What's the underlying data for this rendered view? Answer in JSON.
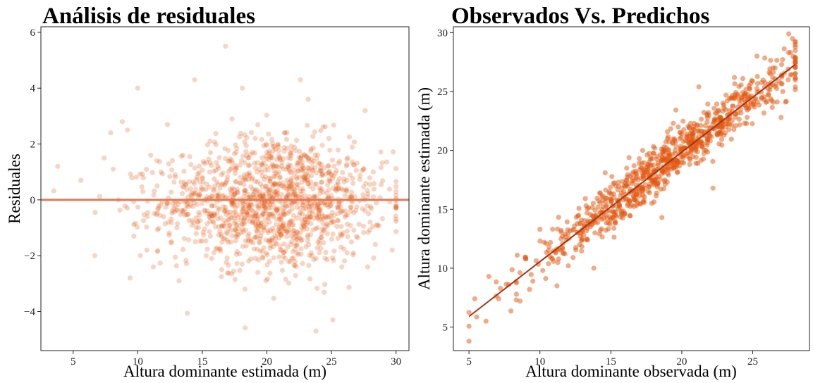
{
  "colors": {
    "points": "#e2570f",
    "ref_line": "#e07a55",
    "fit_line": "#a83310"
  },
  "chart_data": [
    {
      "type": "scatter",
      "title": "Análisis de residuales",
      "xlabel": "Altura dominante estimada (m)",
      "ylabel": "Residuales",
      "xlim": [
        2.5,
        31
      ],
      "ylim": [
        -5.4,
        6.2
      ],
      "xticks": [
        5,
        10,
        15,
        20,
        25,
        30
      ],
      "yticks": [
        -4,
        -2,
        0,
        2,
        4,
        6
      ],
      "yticklabels": [
        "−4",
        "−2",
        "0",
        "2",
        "4",
        "6"
      ],
      "grid": false,
      "reference_line": {
        "y": 0
      },
      "point_count": 1400,
      "point_opacity": 0.25,
      "series": [
        {
          "points": [
            [
              3.8,
              1.2
            ],
            [
              5.6,
              0.7
            ],
            [
              6.7,
              -0.45
            ],
            [
              7.4,
              1.5
            ],
            [
              7.9,
              2.4
            ],
            [
              8.1,
              1.1
            ],
            [
              8.5,
              0.0
            ],
            [
              8.8,
              2.8
            ],
            [
              9.2,
              2.5
            ],
            [
              9.4,
              -2.8
            ],
            [
              9.7,
              -1.3
            ],
            [
              10.0,
              4.0
            ],
            [
              10.2,
              -2.0
            ],
            [
              10.4,
              0.3
            ],
            [
              10.7,
              -1.8
            ],
            [
              11.0,
              1.6
            ],
            [
              11.2,
              -2.4
            ],
            [
              11.5,
              0.5
            ],
            [
              11.8,
              1.0
            ],
            [
              12.0,
              -0.6
            ],
            [
              12.3,
              2.7
            ],
            [
              12.6,
              -1.5
            ],
            [
              12.9,
              0.9
            ],
            [
              13.2,
              -2.9
            ],
            [
              13.5,
              1.6
            ],
            [
              13.8,
              -0.2
            ],
            [
              14.1,
              0.4
            ],
            [
              14.4,
              4.3
            ],
            [
              14.7,
              -1.0
            ],
            [
              15.0,
              0.8
            ],
            [
              15.3,
              -2.0
            ],
            [
              15.6,
              2.1
            ],
            [
              15.9,
              -0.5
            ],
            [
              16.2,
              1.2
            ],
            [
              16.5,
              -2.5
            ],
            [
              16.8,
              5.5
            ],
            [
              17.0,
              -0.7
            ],
            [
              17.3,
              2.9
            ],
            [
              17.6,
              -1.3
            ],
            [
              17.9,
              0.6
            ],
            [
              18.1,
              4.0
            ],
            [
              18.3,
              -3.2
            ],
            [
              18.6,
              1.5
            ],
            [
              18.9,
              -0.4
            ],
            [
              19.1,
              2.2
            ],
            [
              19.4,
              -1.5
            ],
            [
              19.7,
              0.2
            ],
            [
              20.0,
              1.7
            ],
            [
              20.2,
              -2.2
            ],
            [
              20.5,
              -0.6
            ],
            [
              20.8,
              0.9
            ],
            [
              21.1,
              -1.0
            ],
            [
              21.4,
              2.4
            ],
            [
              21.7,
              -0.9
            ],
            [
              22.0,
              0.3
            ],
            [
              22.3,
              -1.6
            ],
            [
              22.6,
              4.3
            ],
            [
              22.9,
              0.8
            ],
            [
              23.2,
              3.6
            ],
            [
              23.5,
              -0.5
            ],
            [
              23.8,
              -4.7
            ],
            [
              24.1,
              1.3
            ],
            [
              24.4,
              -1.1
            ],
            [
              24.8,
              2.2
            ],
            [
              25.1,
              -4.3
            ],
            [
              25.4,
              0.4
            ],
            [
              25.8,
              -2.4
            ],
            [
              26.2,
              0.7
            ],
            [
              26.7,
              -1.9
            ],
            [
              27.8,
              -2.4
            ],
            [
              28.4,
              -1.6
            ],
            [
              29.7,
              -1.8
            ]
          ]
        }
      ]
    },
    {
      "type": "scatter",
      "title": "Observados Vs. Predichos",
      "xlabel": "Altura dominante observada (m)",
      "ylabel": "Altura dominante estimada (m)",
      "xlim": [
        3.9,
        29.0
      ],
      "ylim": [
        3.0,
        30.5
      ],
      "xticks": [
        5,
        10,
        15,
        20,
        25
      ],
      "yticks": [
        5,
        10,
        15,
        20,
        25,
        30
      ],
      "yticklabels": [
        "5",
        "10",
        "15",
        "20",
        "25",
        "30"
      ],
      "grid": false,
      "fit_line": {
        "x": [
          5,
          28
        ],
        "y": [
          5.9,
          27.3
        ]
      },
      "point_count": 900,
      "point_opacity": 0.5,
      "series": [
        {
          "points": [
            [
              5.0,
              3.8
            ],
            [
              6.2,
              5.5
            ],
            [
              6.4,
              9.3
            ],
            [
              7.1,
              7.4
            ],
            [
              7.8,
              8.6
            ],
            [
              8.4,
              11.1
            ],
            [
              8.6,
              7.2
            ],
            [
              9.0,
              10.8
            ],
            [
              9.5,
              8.9
            ],
            [
              10.0,
              13.3
            ],
            [
              10.2,
              9.8
            ],
            [
              10.6,
              11.5
            ],
            [
              11.2,
              8.5
            ],
            [
              11.6,
              11.7
            ],
            [
              12.0,
              10.2
            ],
            [
              12.4,
              13.3
            ],
            [
              12.8,
              12.0
            ],
            [
              13.2,
              15.9
            ],
            [
              13.8,
              10.0
            ],
            [
              14.0,
              14.3
            ],
            [
              14.6,
              18.1
            ],
            [
              15.2,
              16.0
            ],
            [
              15.6,
              15.3
            ],
            [
              16.0,
              14.6
            ],
            [
              16.5,
              17.4
            ],
            [
              17.0,
              19.3
            ],
            [
              17.5,
              18.6
            ],
            [
              18.1,
              20.2
            ],
            [
              18.6,
              14.3
            ],
            [
              19.0,
              21.0
            ],
            [
              19.4,
              22.3
            ],
            [
              20.0,
              21.4
            ],
            [
              20.4,
              19.5
            ],
            [
              20.8,
              22.0
            ],
            [
              21.2,
              25.4
            ],
            [
              21.8,
              23.0
            ],
            [
              22.2,
              16.8
            ],
            [
              22.6,
              21.5
            ],
            [
              23.2,
              24.2
            ],
            [
              23.8,
              23.1
            ],
            [
              24.3,
              26.1
            ],
            [
              24.8,
              25.2
            ],
            [
              25.3,
              28.0
            ],
            [
              25.8,
              24.3
            ],
            [
              26.4,
              26.2
            ],
            [
              27.0,
              22.8
            ],
            [
              27.5,
              26.0
            ],
            [
              27.8,
              29.5
            ]
          ]
        }
      ]
    }
  ]
}
